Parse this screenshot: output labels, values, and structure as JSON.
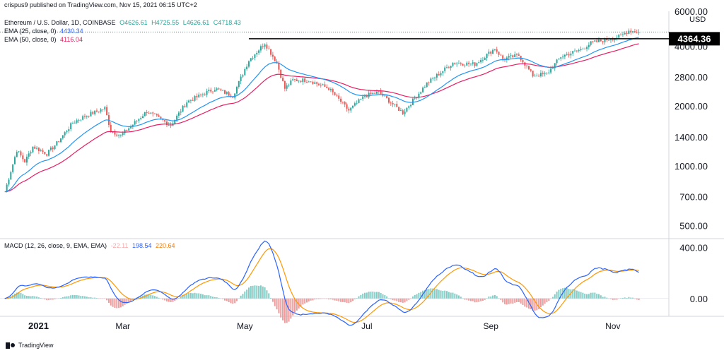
{
  "header": {
    "published": "crispus9 published on TradingView.com, Nov 15, 2021 06:15 UTC+2",
    "symbol": "Ethereum / U.S. Dollar, 1D, COINBASE",
    "ohlc": {
      "o": "O4626.61",
      "h": "H4725.55",
      "l": "L4626.61",
      "c": "C4718.43"
    },
    "ema25_label": "EMA (25, close, 0)",
    "ema25_value": "4430.34",
    "ema50_label": "EMA (50, close, 0)",
    "ema50_value": "4116.04",
    "macd_label": "MACD (12, 26, close, 9, EMA, EMA)",
    "macd_hist": "-22.11",
    "macd_line": "198.54",
    "macd_signal": "220.64"
  },
  "axis": {
    "currency": "USD",
    "price_ticks": [
      "6000.00",
      "4000.00",
      "2800.00",
      "2000.00",
      "1400.00",
      "1000.00",
      "700.00",
      "500.00"
    ],
    "macd_ticks": [
      "400.00",
      "0.00"
    ],
    "month_labels": [
      "2021",
      "Mar",
      "May",
      "Jul",
      "Sep",
      "Nov"
    ]
  },
  "footer": {
    "brand": "TradingView"
  },
  "colors": {
    "up": "#26a69a",
    "down": "#ef5350",
    "ema25": "#2196f3",
    "ema50": "#e91e63",
    "macd": "#2962ff",
    "signal": "#ff9800",
    "resistance": "#000000"
  },
  "chart_data": {
    "type": "candlestick",
    "scale": "log",
    "ylim": [
      430,
      6000
    ],
    "x_range": [
      "2020-12-31",
      "2021-11-29"
    ],
    "month_ticks": [
      {
        "label": "2021",
        "date": "2021-01-01"
      },
      {
        "label": "Mar",
        "date": "2021-03-01"
      },
      {
        "label": "May",
        "date": "2021-05-01"
      },
      {
        "label": "Jul",
        "date": "2021-07-01"
      },
      {
        "label": "Sep",
        "date": "2021-09-01"
      },
      {
        "label": "Nov",
        "date": "2021-11-01"
      }
    ],
    "price_ticks": [
      6000,
      4000,
      2800,
      2000,
      1400,
      1000,
      700,
      500
    ],
    "resistance": {
      "value": 4364.36,
      "label": "4364.36",
      "from": "2021-05-03",
      "to": "2021-11-29"
    },
    "last_price": 4718.43,
    "close_anchors": [
      [
        "2021-01-01",
        740
      ],
      [
        "2021-01-07",
        1200
      ],
      [
        "2021-01-11",
        1050
      ],
      [
        "2021-01-15",
        1250
      ],
      [
        "2021-01-22",
        1150
      ],
      [
        "2021-01-27",
        1300
      ],
      [
        "2021-02-04",
        1650
      ],
      [
        "2021-02-10",
        1780
      ],
      [
        "2021-02-20",
        1950
      ],
      [
        "2021-02-23",
        1500
      ],
      [
        "2021-02-28",
        1420
      ],
      [
        "2021-03-04",
        1550
      ],
      [
        "2021-03-13",
        1880
      ],
      [
        "2021-03-25",
        1600
      ],
      [
        "2021-04-02",
        2100
      ],
      [
        "2021-04-16",
        2450
      ],
      [
        "2021-04-25",
        2250
      ],
      [
        "2021-05-03",
        3400
      ],
      [
        "2021-05-11",
        4150
      ],
      [
        "2021-05-17",
        3300
      ],
      [
        "2021-05-21",
        2450
      ],
      [
        "2021-05-25",
        2700
      ],
      [
        "2021-06-02",
        2700
      ],
      [
        "2021-06-12",
        2450
      ],
      [
        "2021-06-22",
        1900
      ],
      [
        "2021-06-30",
        2250
      ],
      [
        "2021-07-07",
        2350
      ],
      [
        "2021-07-19",
        1850
      ],
      [
        "2021-07-31",
        2600
      ],
      [
        "2021-08-13",
        3300
      ],
      [
        "2021-08-24",
        3250
      ],
      [
        "2021-09-03",
        3900
      ],
      [
        "2021-09-07",
        3450
      ],
      [
        "2021-09-15",
        3600
      ],
      [
        "2021-09-22",
        2850
      ],
      [
        "2021-09-29",
        2900
      ],
      [
        "2021-10-06",
        3550
      ],
      [
        "2021-10-16",
        3850
      ],
      [
        "2021-10-21",
        4150
      ],
      [
        "2021-10-28",
        4300
      ],
      [
        "2021-11-05",
        4500
      ],
      [
        "2021-11-09",
        4800
      ],
      [
        "2021-11-14",
        4718
      ]
    ],
    "ema25_last": 4430.34,
    "ema50_last": 4116.04,
    "macd": {
      "ylim": [
        -140,
        470
      ],
      "ticks": [
        400,
        0
      ],
      "hist_last": -22.11,
      "macd_last": 198.54,
      "signal_last": 220.64
    }
  }
}
